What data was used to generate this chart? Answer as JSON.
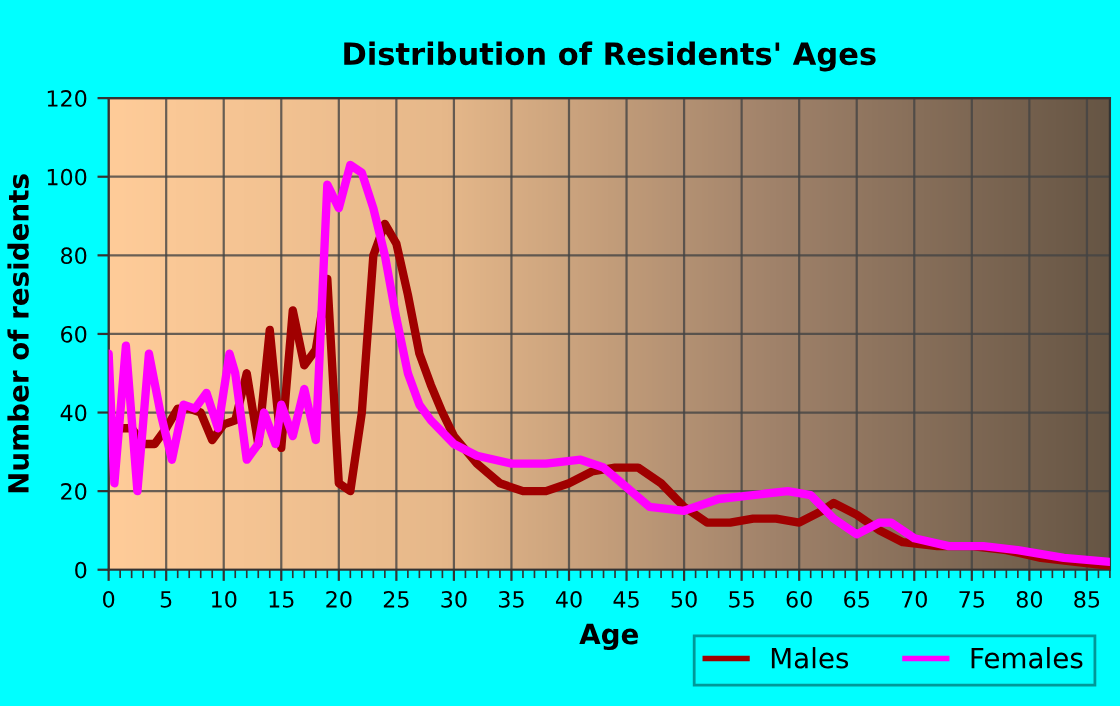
{
  "chart_data": {
    "type": "line",
    "title": "Distribution of Residents' Ages",
    "xlabel": "Age",
    "ylabel": "Number of residents",
    "xlim": [
      0,
      87
    ],
    "xticks": [
      0,
      5,
      10,
      15,
      20,
      25,
      30,
      35,
      40,
      45,
      50,
      55,
      60,
      65,
      70,
      75,
      80,
      85
    ],
    "ylim": [
      0,
      120
    ],
    "yticks": [
      0,
      20,
      40,
      60,
      80,
      100,
      120
    ],
    "grid": true,
    "legend": "bottom right",
    "marker": "none",
    "line_style": "solid",
    "series": [
      {
        "name": "Males",
        "color": "#a00000",
        "x": [
          0,
          1,
          2,
          3,
          4,
          5,
          6,
          7,
          8,
          9,
          10,
          11,
          12,
          13,
          14,
          15,
          16,
          17,
          18,
          19,
          20,
          21,
          22,
          23,
          24,
          25,
          26,
          27,
          28,
          29,
          30,
          32,
          34,
          36,
          38,
          40,
          42,
          44,
          46,
          48,
          50,
          52,
          54,
          56,
          58,
          60,
          62,
          63,
          65,
          67,
          69,
          72,
          75,
          78,
          81,
          84,
          87
        ],
        "values": [
          39,
          36,
          36,
          32,
          32,
          36,
          41,
          41,
          40,
          33,
          37,
          38,
          50,
          32,
          61,
          31,
          66,
          52,
          56,
          74,
          22,
          20,
          40,
          80,
          88,
          83,
          70,
          55,
          47,
          40,
          34,
          27,
          22,
          20,
          20,
          22,
          25,
          26,
          26,
          22,
          16,
          12,
          12,
          13,
          13,
          12,
          15,
          17,
          14,
          10,
          7,
          6,
          6,
          5,
          3,
          2,
          1
        ]
      },
      {
        "name": "Females",
        "color": "#ff00ff",
        "x": [
          0,
          0.5,
          1.5,
          2.5,
          3.5,
          4.5,
          5.5,
          6.5,
          7.5,
          8.5,
          9.5,
          10.5,
          11,
          12,
          13,
          13.5,
          14.5,
          15,
          16,
          17,
          18,
          19,
          20,
          21,
          22,
          23,
          24,
          25,
          26,
          27,
          28,
          30,
          32,
          35,
          38,
          41,
          43,
          45,
          47,
          50,
          53,
          56,
          59,
          61,
          63,
          65,
          67,
          68,
          70,
          73,
          76,
          79,
          83,
          87
        ],
        "values": [
          55,
          22,
          57,
          20,
          55,
          40,
          28,
          42,
          41,
          45,
          36,
          55,
          50,
          28,
          32,
          40,
          32,
          42,
          34,
          46,
          33,
          98,
          92,
          103,
          101,
          92,
          80,
          64,
          50,
          42,
          38,
          32,
          29,
          27,
          27,
          28,
          26,
          21,
          16,
          15,
          18,
          19,
          20,
          19,
          13,
          9,
          12,
          12,
          8,
          6,
          6,
          5,
          3,
          2
        ]
      }
    ]
  }
}
